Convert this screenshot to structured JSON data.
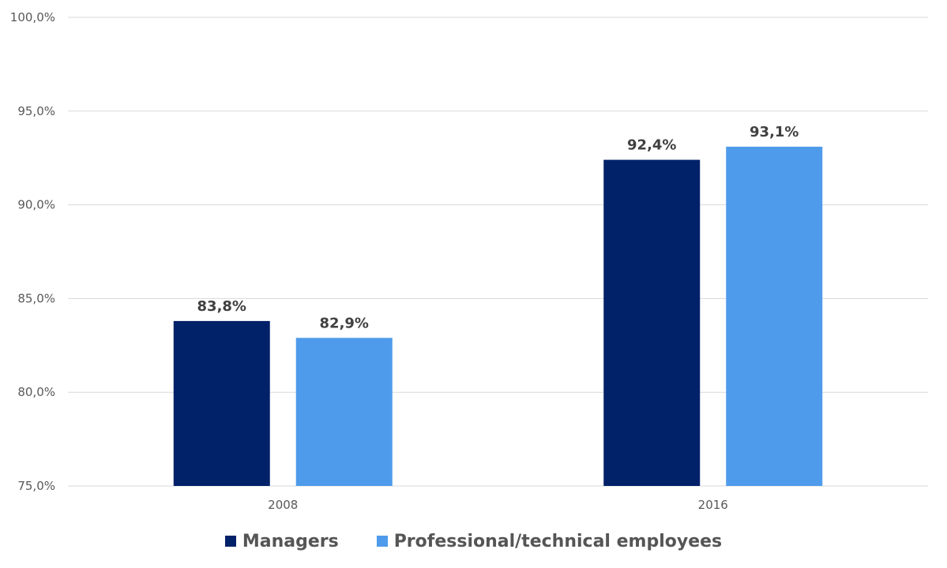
{
  "chart_data": {
    "type": "bar",
    "categories": [
      "2008",
      "2016"
    ],
    "series": [
      {
        "name": "Managers",
        "values": [
          83.8,
          92.4
        ],
        "labels": [
          "83,8%",
          "92,4%"
        ],
        "color": "#012169"
      },
      {
        "name": "Professional/technical employees",
        "values": [
          82.9,
          93.1
        ],
        "labels": [
          "82,9%",
          "93,1%"
        ],
        "color": "#4F9BEB"
      }
    ],
    "ylim": [
      75,
      100
    ],
    "yticks": [
      {
        "value": 75,
        "label": "75,0%"
      },
      {
        "value": 80,
        "label": "80,0%"
      },
      {
        "value": 85,
        "label": "85,0%"
      },
      {
        "value": 90,
        "label": "90,0%"
      },
      {
        "value": 95,
        "label": "95,0%"
      },
      {
        "value": 100,
        "label": "100,0%"
      }
    ],
    "grid": true,
    "legend_position": "bottom",
    "title": "",
    "xlabel": "",
    "ylabel": "",
    "colors": {
      "gridline": "#D9D9D9",
      "tick_text": "#595959",
      "data_label": "#404040"
    }
  }
}
